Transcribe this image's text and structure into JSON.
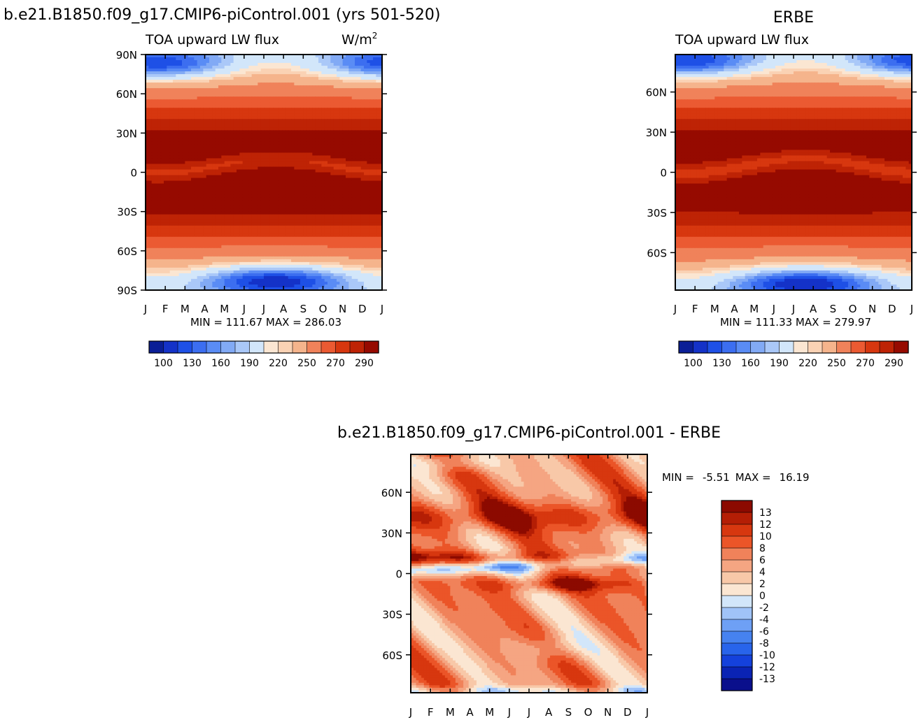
{
  "figure": {
    "main_title": "b.e21.B1850.f09_g17.CMIP6-piControl.001 (yrs 501-520)",
    "obs_title": "ERBE",
    "diff_title": "b.e21.B1850.f09_g17.CMIP6-piControl.001  -  ERBE"
  },
  "colors": {
    "abs_palette": [
      "#0a1e96",
      "#1432c8",
      "#1e50e6",
      "#3c6ef0",
      "#5a8cf5",
      "#82aaf5",
      "#aac8f8",
      "#d2e6fa",
      "#fbe6d2",
      "#fad2b4",
      "#f5b48c",
      "#f0825a",
      "#eb5a32",
      "#d7370f",
      "#be2305",
      "#960a00"
    ],
    "diff_palette": [
      "#0a0f8c",
      "#0a23b4",
      "#1441dc",
      "#2864eb",
      "#4682f0",
      "#6ea0f5",
      "#a0c3f8",
      "#d2e6fa",
      "#fbe6d2",
      "#f8c8a8",
      "#f5a582",
      "#f0825a",
      "#eb5528",
      "#d7370f",
      "#b41e05",
      "#8c0a00"
    ]
  },
  "chart_data": [
    {
      "type": "heatmap",
      "name": "model",
      "title": "TOA upward LW flux",
      "units_base": "W/m",
      "units_exp": "2",
      "x_ticklabels": [
        "J",
        "F",
        "M",
        "A",
        "M",
        "J",
        "J",
        "A",
        "S",
        "O",
        "N",
        "D",
        "J"
      ],
      "y_ticklabels": [
        "90N",
        "60N",
        "30N",
        "0",
        "30S",
        "60S",
        "90S"
      ],
      "y_tickvalues": [
        90,
        60,
        30,
        0,
        -30,
        -60,
        -90
      ],
      "ylim": [
        -90,
        90
      ],
      "stats": "MIN = 111.67  MAX = 286.03",
      "colorbar_levels": [
        "100",
        "130",
        "160",
        "190",
        "220",
        "250",
        "270",
        "290"
      ],
      "levels": [
        100,
        110,
        120,
        130,
        140,
        150,
        160,
        180,
        190,
        200,
        220,
        240,
        250,
        260,
        270,
        280,
        290
      ]
    },
    {
      "type": "heatmap",
      "name": "observations",
      "title": "TOA upward LW flux",
      "x_ticklabels": [
        "J",
        "F",
        "M",
        "A",
        "M",
        "J",
        "J",
        "A",
        "S",
        "O",
        "N",
        "D",
        "J"
      ],
      "y_ticklabels": [
        "60N",
        "30N",
        "0",
        "30S",
        "60S"
      ],
      "y_tickvalues": [
        60,
        30,
        0,
        -30,
        -60
      ],
      "ylim": [
        -88,
        88
      ],
      "stats": "MIN = 111.33  MAX = 279.97",
      "colorbar_levels": [
        "100",
        "130",
        "160",
        "190",
        "220",
        "250",
        "270",
        "290"
      ],
      "levels": [
        100,
        110,
        120,
        130,
        140,
        150,
        160,
        180,
        190,
        200,
        220,
        240,
        250,
        260,
        270,
        280,
        290
      ]
    },
    {
      "type": "heatmap",
      "name": "difference",
      "x_ticklabels": [
        "J",
        "F",
        "M",
        "A",
        "M",
        "J",
        "J",
        "A",
        "S",
        "O",
        "N",
        "D",
        "J"
      ],
      "y_ticklabels": [
        "60N",
        "30N",
        "0",
        "30S",
        "60S"
      ],
      "y_tickvalues": [
        60,
        30,
        0,
        -30,
        -60
      ],
      "ylim": [
        -88,
        88
      ],
      "stats_min_label": "MIN =",
      "stats_min": "-5.51",
      "stats_max_label": "MAX =",
      "stats_max": "16.19",
      "colorbar_levels": [
        "13",
        "12",
        "10",
        "8",
        "6",
        "4",
        "2",
        "0",
        "-2",
        "-4",
        "-6",
        "-8",
        "-10",
        "-12",
        "-13"
      ],
      "levels": [
        -13,
        -12,
        -10,
        -8,
        -6,
        -4,
        -2,
        0,
        2,
        4,
        6,
        8,
        10,
        12,
        13
      ]
    }
  ]
}
